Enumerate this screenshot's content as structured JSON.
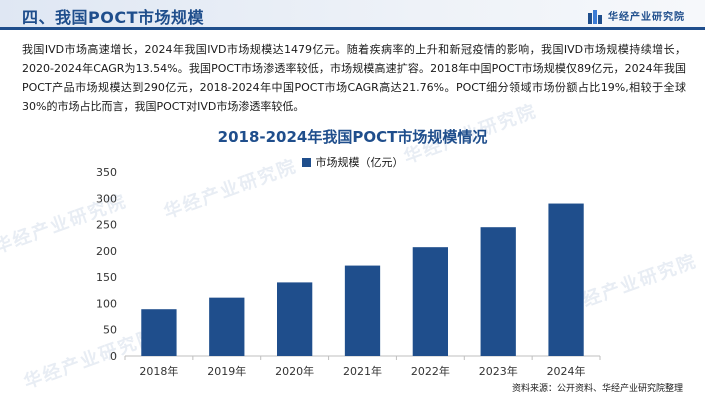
{
  "header": {
    "title": "四、我国POCT市场规模",
    "brand": "华经产业研究院"
  },
  "intro": "我国IVD市场高速增长，2024年我国IVD市场规模达1479亿元。随着疾病率的上升和新冠疫情的影响，我国IVD市场规模持续增长，2020-2024年CAGR为13.54%。我国POCT市场渗透率较低，市场规模高速扩容。2018年中国POCT市场规模仅89亿元，2024年我国POCT产品市场规模达到290亿元，2018-2024年中国POCT市场CAGR高达21.76%。POCT细分领域市场份额占比19%,相较于全球30%的市场占比而言，我国POCT对IVD市场渗透率较低。",
  "watermark": "华经产业研究院",
  "source": "资料来源：公开资料、华经产业研究院整理",
  "colors": {
    "accent": "#1f4e8c",
    "bar": "#1f4e8c"
  },
  "chart_data": {
    "type": "bar",
    "title": "2018-2024年我国POCT市场规模情况",
    "categories": [
      "2018年",
      "2019年",
      "2020年",
      "2021年",
      "2022年",
      "2023年",
      "2024年"
    ],
    "series": [
      {
        "name": "市场规模（亿元）",
        "values": [
          89,
          111,
          140,
          172,
          207,
          245,
          290
        ]
      }
    ],
    "xlabel": "",
    "ylabel": "",
    "ylim": [
      0,
      350
    ],
    "yticks": [
      0,
      50,
      100,
      150,
      200,
      250,
      300,
      350
    ],
    "grid": false,
    "legend": "top-center"
  }
}
